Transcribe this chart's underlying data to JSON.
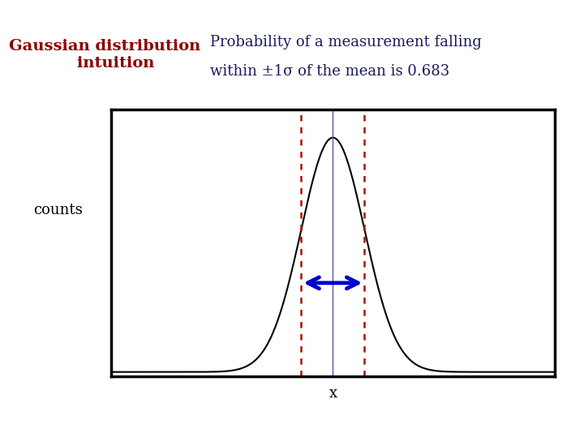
{
  "title_text": "Gaussian distribution\n    intuition",
  "title_bg": "#ffff99",
  "title_color": "#8b0000",
  "desc_line1": "Probability of a measurement falling",
  "desc_line2": "within ±1σ of the mean is 0.683",
  "desc_color": "#1a1a5e",
  "ylabel": "counts",
  "xlabel": "x",
  "mean": 0.0,
  "sigma": 0.5,
  "xrange": [
    -3.5,
    3.5
  ],
  "dashed_color": "#aa1100",
  "mean_line_color": "#5555aa",
  "arrow_color": "#0000cc",
  "curve_color": "#000000",
  "background": "#ffffff",
  "box_bg": "#ffffff",
  "title_fontsize": 14,
  "desc_fontsize": 13,
  "ylabel_fontsize": 13,
  "xlabel_fontsize": 13
}
